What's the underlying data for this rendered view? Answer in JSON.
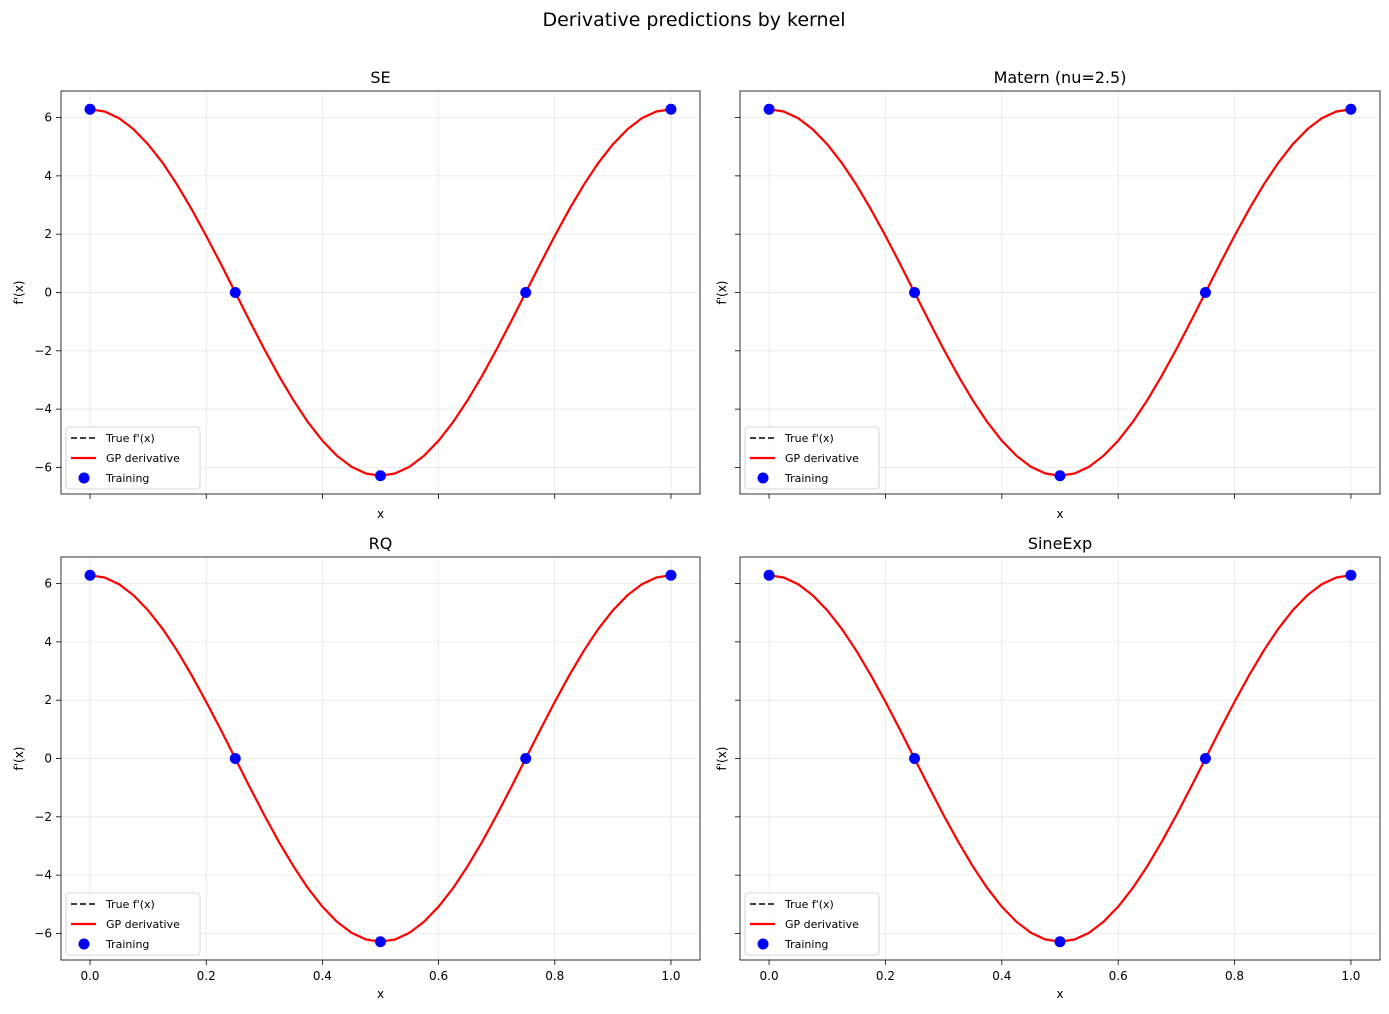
{
  "figure_title": "Derivative predictions by kernel",
  "chart_data": [
    {
      "type": "line",
      "title": "SE",
      "xlabel": "x",
      "ylabel": "f'(x)",
      "xlim": [
        -0.05,
        1.05
      ],
      "ylim": [
        -6.91,
        6.91
      ],
      "xticks": [
        0.0,
        0.2,
        0.4,
        0.6,
        0.8,
        1.0
      ],
      "xticklabels": [
        "0.0",
        "0.2",
        "0.4",
        "0.6",
        "0.8",
        "1.0"
      ],
      "show_xticklabels": false,
      "yticks": [
        -6,
        -4,
        -2,
        0,
        2,
        4,
        6
      ],
      "yticklabels": [
        "−6",
        "−4",
        "−2",
        "0",
        "2",
        "4",
        "6"
      ],
      "show_yticklabels": true,
      "grid": true,
      "legend": "lower-left"
    },
    {
      "type": "line",
      "title": "Matern (nu=2.5)",
      "xlabel": "x",
      "ylabel": "f'(x)",
      "xlim": [
        -0.05,
        1.05
      ],
      "ylim": [
        -6.91,
        6.91
      ],
      "xticks": [
        0.0,
        0.2,
        0.4,
        0.6,
        0.8,
        1.0
      ],
      "xticklabels": [
        "0.0",
        "0.2",
        "0.4",
        "0.6",
        "0.8",
        "1.0"
      ],
      "show_xticklabels": false,
      "yticks": [
        -6,
        -4,
        -2,
        0,
        2,
        4,
        6
      ],
      "yticklabels": [
        "−6",
        "−4",
        "−2",
        "0",
        "2",
        "4",
        "6"
      ],
      "show_yticklabels": false,
      "grid": true,
      "legend": "lower-left"
    },
    {
      "type": "line",
      "title": "RQ",
      "xlabel": "x",
      "ylabel": "f'(x)",
      "xlim": [
        -0.05,
        1.05
      ],
      "ylim": [
        -6.91,
        6.91
      ],
      "xticks": [
        0.0,
        0.2,
        0.4,
        0.6,
        0.8,
        1.0
      ],
      "xticklabels": [
        "0.0",
        "0.2",
        "0.4",
        "0.6",
        "0.8",
        "1.0"
      ],
      "show_xticklabels": true,
      "yticks": [
        -6,
        -4,
        -2,
        0,
        2,
        4,
        6
      ],
      "yticklabels": [
        "−6",
        "−4",
        "−2",
        "0",
        "2",
        "4",
        "6"
      ],
      "show_yticklabels": true,
      "grid": true,
      "legend": "lower-left"
    },
    {
      "type": "line",
      "title": "SineExp",
      "xlabel": "x",
      "ylabel": "f'(x)",
      "xlim": [
        -0.05,
        1.05
      ],
      "ylim": [
        -6.91,
        6.91
      ],
      "xticks": [
        0.0,
        0.2,
        0.4,
        0.6,
        0.8,
        1.0
      ],
      "xticklabels": [
        "0.0",
        "0.2",
        "0.4",
        "0.6",
        "0.8",
        "1.0"
      ],
      "show_xticklabels": true,
      "yticks": [
        -6,
        -4,
        -2,
        0,
        2,
        4,
        6
      ],
      "yticklabels": [
        "−6",
        "−4",
        "−2",
        "0",
        "2",
        "4",
        "6"
      ],
      "show_yticklabels": false,
      "grid": true,
      "legend": "lower-left"
    }
  ],
  "series_style": {
    "true": {
      "name": "True f'(x)",
      "color": "#000000",
      "dash": true
    },
    "gp": {
      "name": "GP derivative",
      "color": "#ff0000",
      "dash": false
    },
    "training": {
      "name": "Training",
      "color": "#0000ff"
    }
  },
  "curve_x": [
    0,
    0.025,
    0.05,
    0.075,
    0.1,
    0.125,
    0.15,
    0.175,
    0.2,
    0.225,
    0.25,
    0.275,
    0.3,
    0.325,
    0.35,
    0.375,
    0.4,
    0.425,
    0.45,
    0.475,
    0.5,
    0.525,
    0.55,
    0.575,
    0.6,
    0.625,
    0.65,
    0.675,
    0.7,
    0.725,
    0.75,
    0.775,
    0.8,
    0.825,
    0.85,
    0.875,
    0.9,
    0.925,
    0.95,
    0.975,
    1.0
  ],
  "true_y": [
    6.283,
    6.206,
    5.976,
    5.598,
    5.083,
    4.443,
    3.693,
    2.853,
    1.942,
    0.983,
    0,
    -0.983,
    -1.942,
    -2.853,
    -3.693,
    -4.443,
    -5.083,
    -5.598,
    -5.976,
    -6.206,
    -6.283,
    -6.206,
    -5.976,
    -5.598,
    -5.083,
    -4.443,
    -3.693,
    -2.853,
    -1.942,
    -0.983,
    0,
    0.983,
    1.942,
    2.853,
    3.693,
    4.443,
    5.083,
    5.598,
    5.976,
    6.206,
    6.283
  ],
  "gp_y": [
    6.283,
    6.206,
    5.976,
    5.598,
    5.083,
    4.443,
    3.693,
    2.853,
    1.942,
    0.983,
    0,
    -0.983,
    -1.942,
    -2.853,
    -3.693,
    -4.443,
    -5.083,
    -5.598,
    -5.976,
    -6.206,
    -6.283,
    -6.206,
    -5.976,
    -5.598,
    -5.083,
    -4.443,
    -3.693,
    -2.853,
    -1.942,
    -0.983,
    0,
    0.983,
    1.942,
    2.853,
    3.693,
    4.443,
    5.083,
    5.598,
    5.976,
    6.206,
    6.283
  ],
  "training_x": [
    0,
    0.25,
    0.5,
    0.75,
    1.0
  ],
  "training_y": [
    6.283,
    0,
    -6.283,
    0,
    6.283
  ]
}
